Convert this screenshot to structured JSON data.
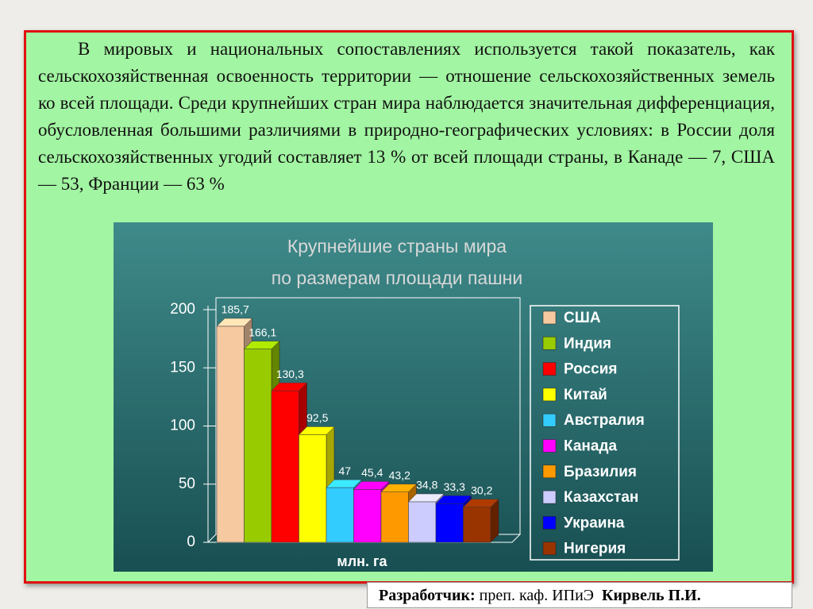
{
  "paragraph": "В мировых и национальных сопоставлениях используется такой показатель, как сельскохозяйственная освоенность территории — отношение сельскохозяйственных земель ко всей площади. Среди крупнейших стран мира наблюдается значительная дифференциация, обусловленная большими различиями в природно-географических условиях: в России доля сельскохозяйственных угодий составляет 13 % от всей площади страны, в Канаде — 7, США — 53, Франции — 63 %",
  "footer": {
    "label": "Разработчик:",
    "position": "преп. каф. ИПиЭ",
    "name": "Кирвель П.И."
  },
  "chart_data": {
    "type": "bar3d",
    "title": [
      "Крупнейшие страны мира",
      "по размерам площади пашни"
    ],
    "xlabel": "млн. га",
    "categories": [
      "США",
      "Индия",
      "Россия",
      "Китай",
      "Австралия",
      "Канада",
      "Бразилия",
      "Казахстан",
      "Украина",
      "Нигерия"
    ],
    "values": [
      185.7,
      166.1,
      130.3,
      92.5,
      47,
      45.4,
      43.2,
      34.8,
      33.3,
      30.2
    ],
    "value_labels": [
      "185,7",
      "166,1",
      "130,3",
      "92,5",
      "47",
      "45,4",
      "43,2",
      "34,8",
      "33,3",
      "30,2"
    ],
    "colors": [
      "#f6c9a0",
      "#99cc00",
      "#ff0000",
      "#ffff00",
      "#33ccff",
      "#ff00ff",
      "#ff9900",
      "#ccccff",
      "#0000ff",
      "#993300"
    ],
    "ylim": [
      0,
      200
    ],
    "yticks": [
      0,
      50,
      100,
      150,
      200
    ],
    "legend": "right"
  }
}
